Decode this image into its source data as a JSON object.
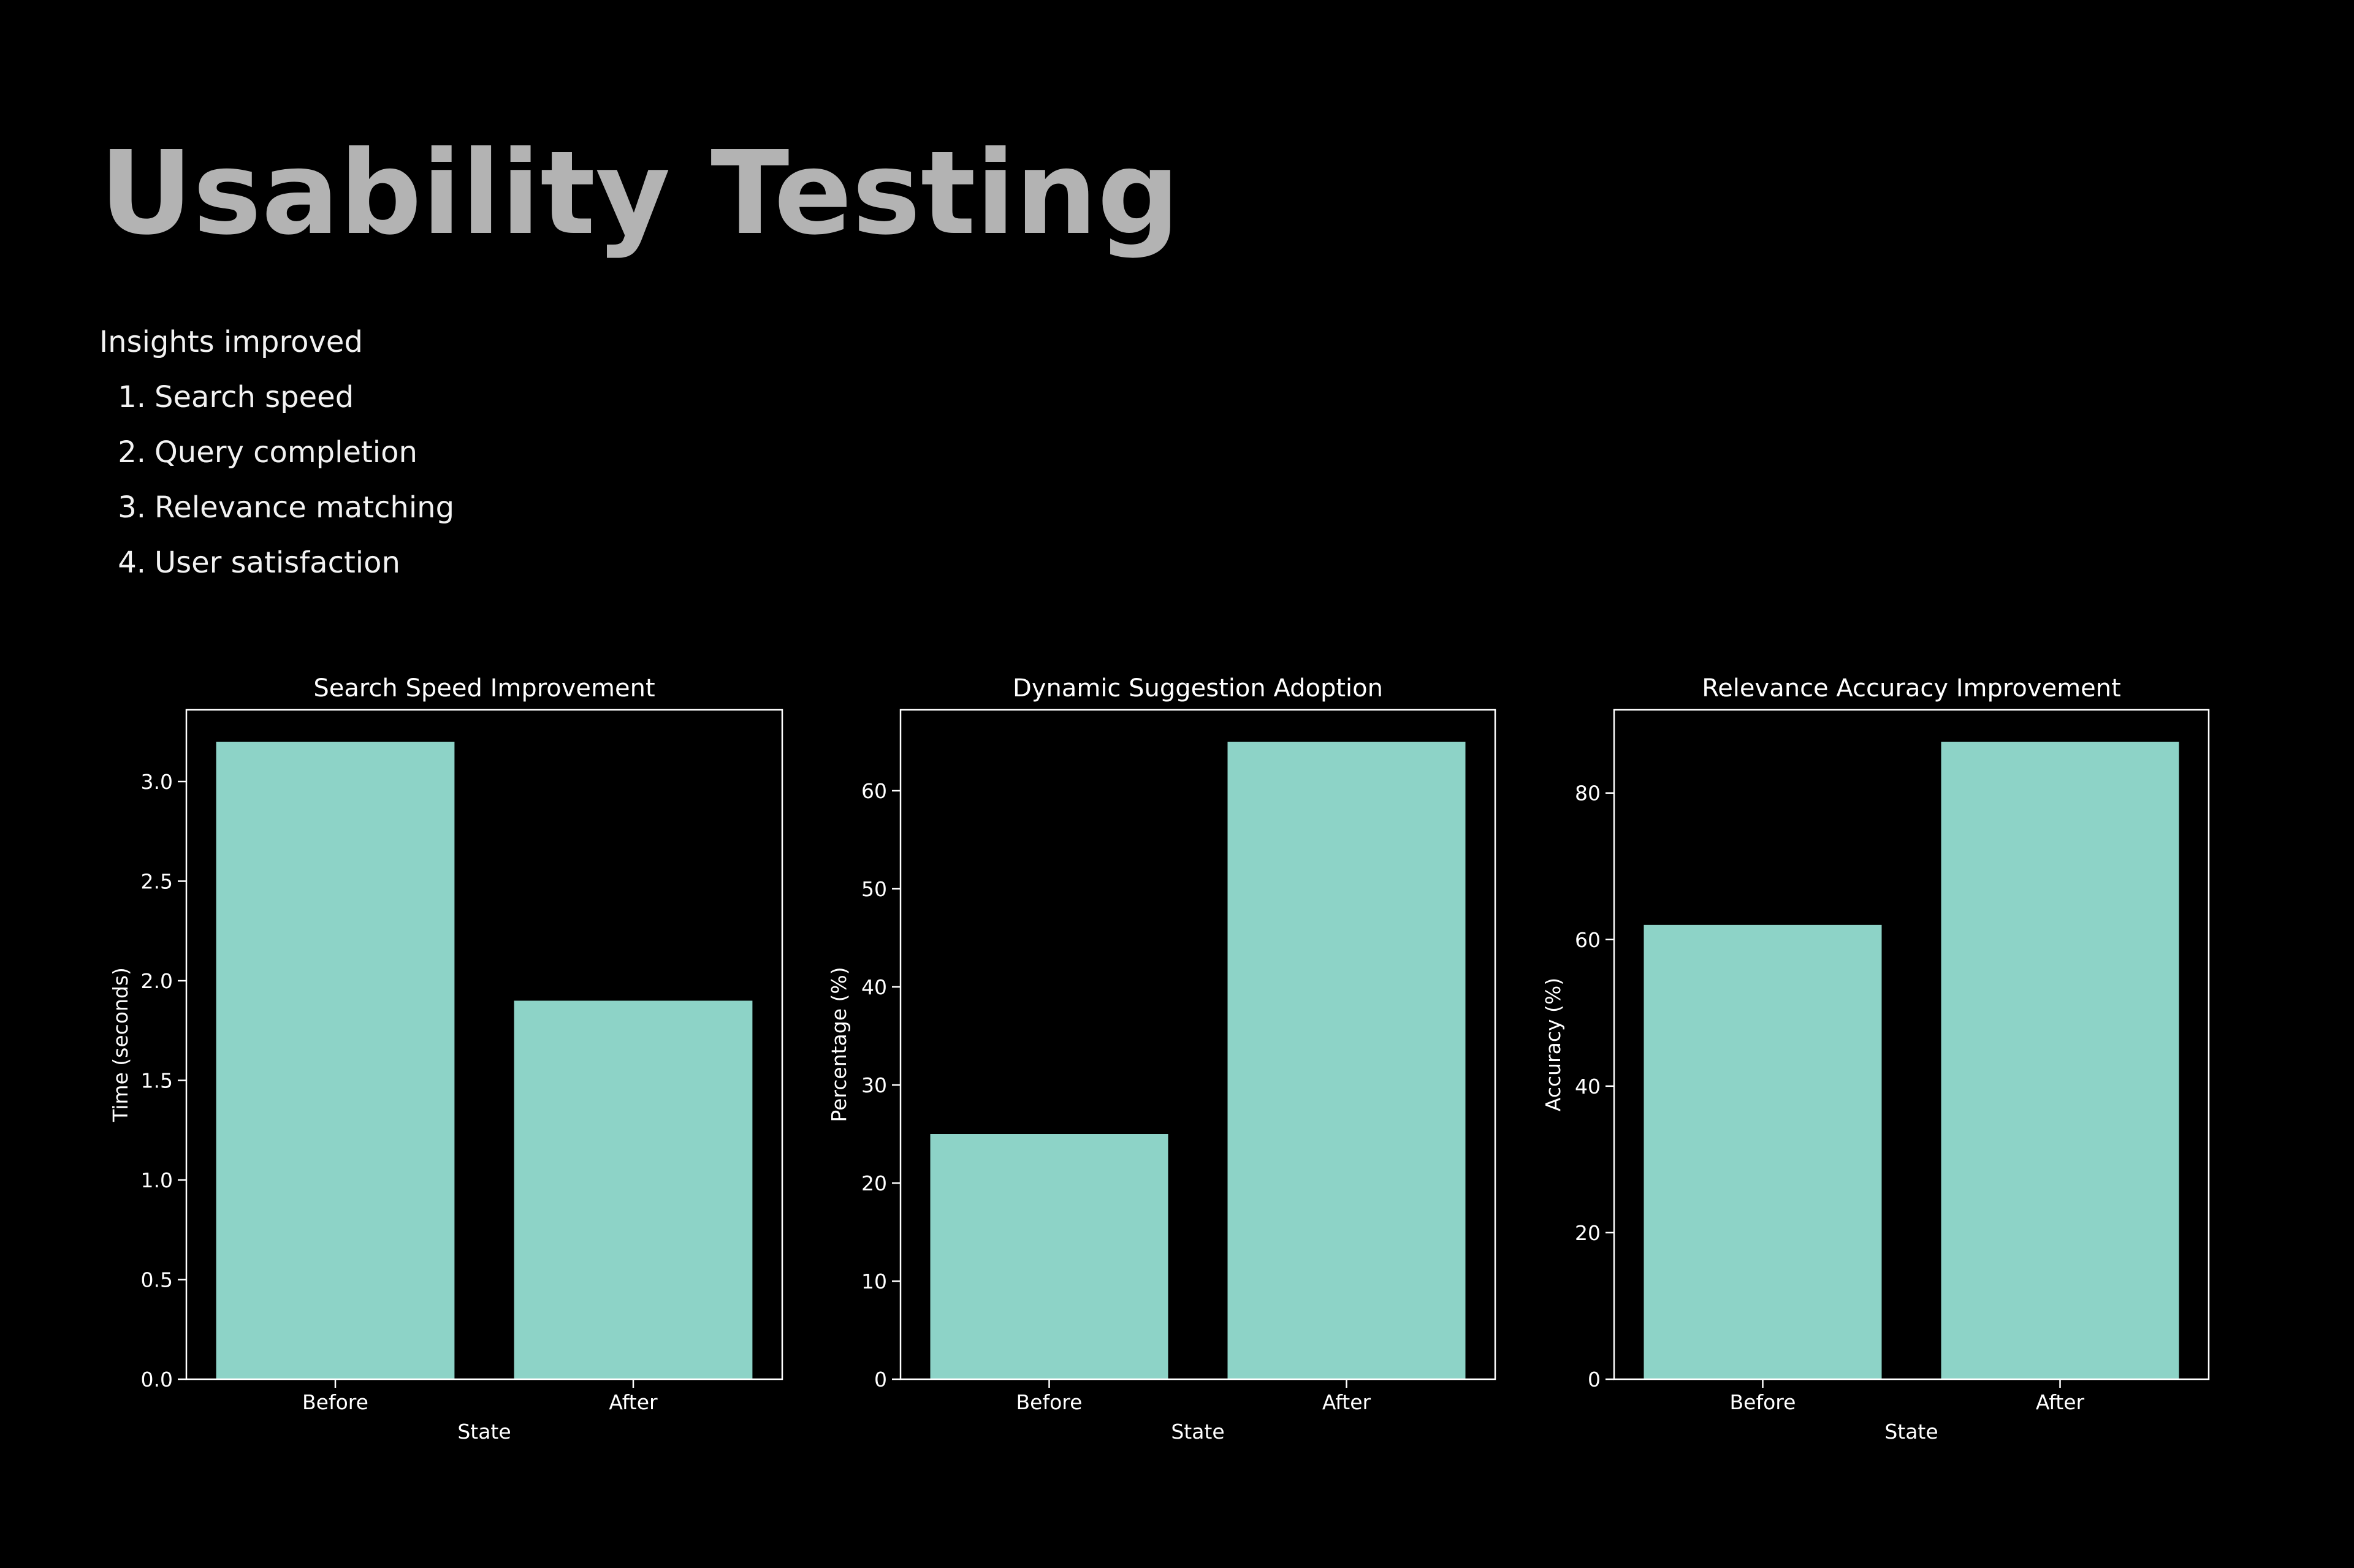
{
  "slide": {
    "title": "Usability Testing",
    "insights_heading": "Insights improved",
    "insights": [
      {
        "num": "1.",
        "label": "Search speed"
      },
      {
        "num": "2.",
        "label": "Query completion"
      },
      {
        "num": "3.",
        "label": "Relevance matching"
      },
      {
        "num": "4.",
        "label": "User satisfaction"
      }
    ]
  },
  "colors": {
    "background": "#000000",
    "title": "#b3b3b3",
    "bar": "#8dd3c7",
    "axis": "#ffffff"
  },
  "chart_data": [
    {
      "type": "bar",
      "title": "Search Speed Improvement",
      "xlabel": "State",
      "ylabel": "Time (seconds)",
      "categories": [
        "Before",
        "After"
      ],
      "values": [
        3.2,
        1.9
      ],
      "ylim": [
        0,
        3.36
      ],
      "yticks": [
        0.0,
        0.5,
        1.0,
        1.5,
        2.0,
        2.5,
        3.0
      ],
      "ytick_labels": [
        "0.0",
        "0.5",
        "1.0",
        "1.5",
        "2.0",
        "2.5",
        "3.0"
      ],
      "grid": false,
      "legend": "none"
    },
    {
      "type": "bar",
      "title": "Dynamic Suggestion Adoption",
      "xlabel": "State",
      "ylabel": "Percentage (%)",
      "categories": [
        "Before",
        "After"
      ],
      "values": [
        25,
        65
      ],
      "ylim": [
        0,
        68.25
      ],
      "yticks": [
        0,
        10,
        20,
        30,
        40,
        50,
        60
      ],
      "ytick_labels": [
        "0",
        "10",
        "20",
        "30",
        "40",
        "50",
        "60"
      ],
      "grid": false,
      "legend": "none"
    },
    {
      "type": "bar",
      "title": "Relevance Accuracy Improvement",
      "xlabel": "State",
      "ylabel": "Accuracy (%)",
      "categories": [
        "Before",
        "After"
      ],
      "values": [
        62,
        87
      ],
      "ylim": [
        0,
        91.35
      ],
      "yticks": [
        0,
        20,
        40,
        60,
        80
      ],
      "ytick_labels": [
        "0",
        "20",
        "40",
        "60",
        "80"
      ],
      "grid": false,
      "legend": "none"
    }
  ]
}
